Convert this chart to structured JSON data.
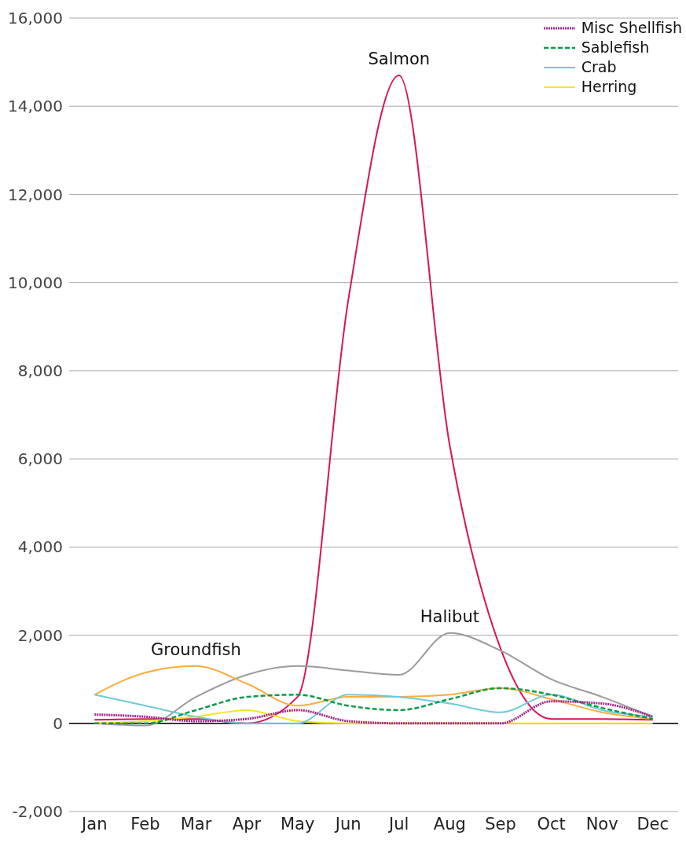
{
  "chart_data": {
    "type": "line",
    "categories": [
      "Jan",
      "Feb",
      "Mar",
      "Apr",
      "May",
      "Jun",
      "Jul",
      "Aug",
      "Sep",
      "Oct",
      "Nov",
      "Dec"
    ],
    "series": [
      {
        "name": "Misc Shellfish",
        "color": "#a0288c",
        "line_style": "dotted",
        "values": [
          200,
          150,
          50,
          100,
          300,
          50,
          0,
          0,
          0,
          500,
          450,
          150
        ]
      },
      {
        "name": "Sablefish",
        "color": "#0a9a4a",
        "line_style": "dashed",
        "values": [
          0,
          0,
          300,
          600,
          650,
          400,
          300,
          550,
          800,
          650,
          350,
          100
        ]
      },
      {
        "name": "Crab",
        "color": "#6ccbd8",
        "line_style": "solid",
        "values": [
          650,
          400,
          150,
          0,
          0,
          650,
          600,
          450,
          250,
          650,
          300,
          150
        ]
      },
      {
        "name": "Herring",
        "color": "#f5e61e",
        "line_style": "solid",
        "values": [
          0,
          50,
          150,
          300,
          50,
          0,
          0,
          0,
          0,
          0,
          0,
          0
        ]
      },
      {
        "color": "#f9ad3a",
        "line_style": "solid",
        "values": [
          650,
          1150,
          1300,
          900,
          400,
          600,
          600,
          650,
          800,
          550,
          250,
          100
        ]
      },
      {
        "color": "#9b9b9b",
        "line_style": "solid",
        "values": [
          0,
          -50,
          600,
          1100,
          1300,
          1200,
          1100,
          2050,
          1650,
          1000,
          600,
          150
        ]
      },
      {
        "color": "#d8135a",
        "line_style": "solid",
        "values": [
          80,
          100,
          100,
          0,
          600,
          9600,
          14700,
          6300,
          1700,
          100,
          100,
          80
        ]
      }
    ],
    "annotations": [
      {
        "text": "Groundfish",
        "x": "Mar",
        "y": 1300
      },
      {
        "text": "Halibut",
        "x": "Aug",
        "y": 2050
      },
      {
        "text": "Salmon",
        "x": "Jul",
        "y": 14700
      }
    ],
    "ylim": [
      -2000,
      16000
    ],
    "yticks": [
      {
        "value": -2000,
        "label": "-2,000"
      },
      0,
      {
        "value": 2000,
        "label": "2,000"
      },
      {
        "value": 4000,
        "label": "4,000"
      },
      {
        "value": 6000,
        "label": "6,000"
      },
      {
        "value": 8000,
        "label": "8,000"
      },
      {
        "value": 10000,
        "label": "10,000"
      },
      {
        "value": 12000,
        "label": "12,000"
      },
      {
        "value": 14000,
        "label": "14,000"
      },
      {
        "value": 16000,
        "label": "16,000"
      }
    ],
    "grid": "y",
    "legend": "top right",
    "marker": "none",
    "ref_lines": [
      {
        "axis": "y",
        "value": 0,
        "color": "#000000"
      }
    ]
  }
}
